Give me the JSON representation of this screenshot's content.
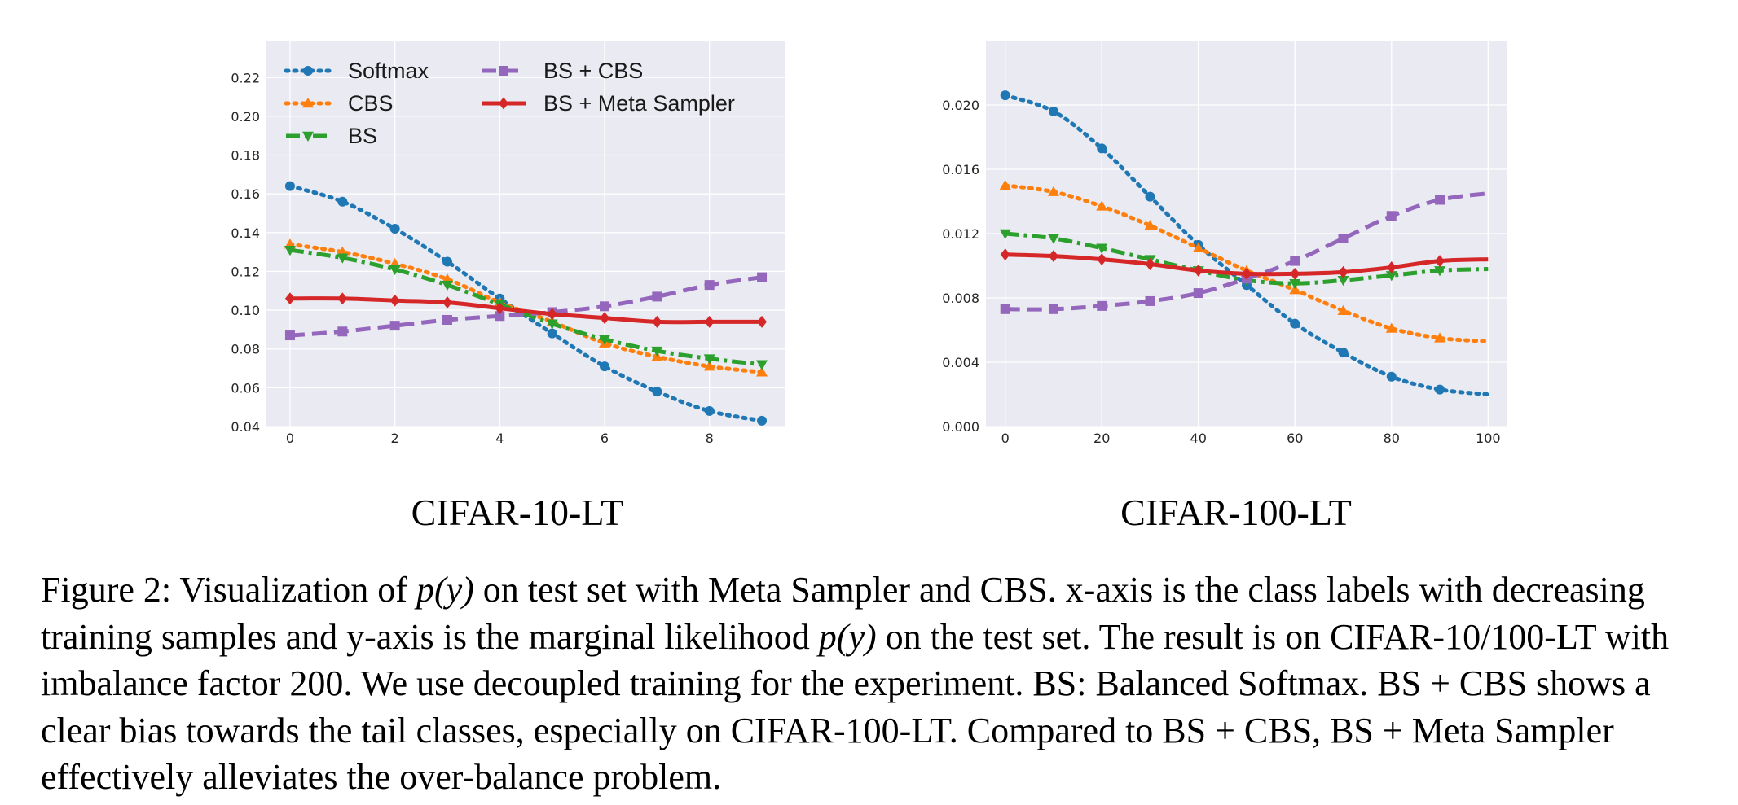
{
  "chart_data": [
    {
      "type": "line",
      "subtitle": "CIFAR-10-LT",
      "x": [
        0,
        1,
        2,
        3,
        4,
        5,
        6,
        7,
        8,
        9
      ],
      "xticks": [
        0,
        2,
        4,
        6,
        8
      ],
      "xlim": [
        -0.45,
        9.45
      ],
      "yticks": [
        0.04,
        0.06,
        0.08,
        0.1,
        0.12,
        0.14,
        0.16,
        0.18,
        0.2,
        0.22
      ],
      "ytick_labels": [
        "0.04",
        "0.06",
        "0.08",
        "0.10",
        "0.12",
        "0.14",
        "0.16",
        "0.18",
        "0.20",
        "0.22"
      ],
      "ylim": [
        0.04,
        0.239
      ],
      "grid": true,
      "legend": "top-left",
      "series": [
        {
          "name": "Softmax",
          "color": "#1f77b4",
          "marker": "circle",
          "dash": "dotted",
          "values": [
            0.164,
            0.156,
            0.142,
            0.125,
            0.106,
            0.088,
            0.071,
            0.058,
            0.048,
            0.043
          ]
        },
        {
          "name": "CBS",
          "color": "#ff7f0e",
          "marker": "triangle-up",
          "dash": "dotted",
          "values": [
            0.134,
            0.13,
            0.124,
            0.116,
            0.104,
            0.094,
            0.083,
            0.076,
            0.071,
            0.068
          ]
        },
        {
          "name": "BS",
          "color": "#2ca02c",
          "marker": "triangle-down",
          "dash": "dashdot",
          "values": [
            0.131,
            0.127,
            0.121,
            0.113,
            0.103,
            0.093,
            0.085,
            0.079,
            0.075,
            0.072
          ]
        },
        {
          "name": "BS + CBS",
          "color": "#9467bd",
          "marker": "square",
          "dash": "dashed",
          "values": [
            0.087,
            0.089,
            0.092,
            0.095,
            0.097,
            0.099,
            0.102,
            0.107,
            0.113,
            0.117
          ]
        },
        {
          "name": "BS + Meta Sampler",
          "color": "#d62728",
          "marker": "diamond",
          "dash": "solid",
          "values": [
            0.106,
            0.106,
            0.105,
            0.104,
            0.101,
            0.098,
            0.096,
            0.094,
            0.094,
            0.094
          ]
        }
      ]
    },
    {
      "type": "line",
      "subtitle": "CIFAR-100-LT",
      "x": [
        0,
        10,
        20,
        30,
        40,
        50,
        60,
        70,
        80,
        90,
        100
      ],
      "marker_x": [
        0,
        10,
        20,
        30,
        40,
        50,
        60,
        70,
        80,
        90
      ],
      "xticks": [
        0,
        20,
        40,
        60,
        80,
        100
      ],
      "xlim": [
        -4,
        104
      ],
      "yticks": [
        0.0,
        0.004,
        0.008,
        0.012,
        0.016,
        0.02
      ],
      "ytick_labels": [
        "0.000",
        "0.004",
        "0.008",
        "0.012",
        "0.016",
        "0.020"
      ],
      "ylim": [
        0,
        0.024
      ],
      "grid": true,
      "series": [
        {
          "name": "Softmax",
          "color": "#1f77b4",
          "marker": "circle",
          "dash": "dotted",
          "values": [
            0.0206,
            0.0196,
            0.0173,
            0.0143,
            0.0113,
            0.0088,
            0.0064,
            0.0046,
            0.0031,
            0.0023,
            0.002
          ]
        },
        {
          "name": "CBS",
          "color": "#ff7f0e",
          "marker": "triangle-up",
          "dash": "dotted",
          "values": [
            0.015,
            0.0146,
            0.0137,
            0.0125,
            0.0111,
            0.0097,
            0.0085,
            0.0072,
            0.0061,
            0.0055,
            0.0053
          ]
        },
        {
          "name": "BS",
          "color": "#2ca02c",
          "marker": "triangle-down",
          "dash": "dashdot",
          "values": [
            0.012,
            0.0117,
            0.0111,
            0.0104,
            0.0097,
            0.0091,
            0.0089,
            0.0091,
            0.0094,
            0.0097,
            0.0098
          ]
        },
        {
          "name": "BS + CBS",
          "color": "#9467bd",
          "marker": "square",
          "dash": "dashed",
          "values": [
            0.0073,
            0.0073,
            0.0075,
            0.0078,
            0.0083,
            0.0092,
            0.0103,
            0.0117,
            0.0131,
            0.0141,
            0.0145
          ]
        },
        {
          "name": "BS + Meta Sampler",
          "color": "#d62728",
          "marker": "diamond",
          "dash": "solid",
          "values": [
            0.0107,
            0.0106,
            0.0104,
            0.0101,
            0.0097,
            0.0095,
            0.0095,
            0.0096,
            0.0099,
            0.0103,
            0.0104
          ]
        }
      ]
    }
  ],
  "caption": {
    "label": "Figure 2:",
    "text_1": "Visualization of",
    "math_1": "p(y)",
    "text_2": "on test set with Meta Sampler and CBS. x-axis is the class labels with decreasing training samples and y-axis is the marginal likelihood",
    "math_2": "p(y)",
    "text_3": "on the test set. The result is on CIFAR-10/100-LT with imbalance factor 200. We use decoupled training for the experiment. BS: Balanced Softmax. BS + CBS shows a clear bias towards the tail classes, especially on CIFAR-100-LT. Compared to BS + CBS, BS + Meta Sampler effectively alleviates the over-balance problem."
  }
}
